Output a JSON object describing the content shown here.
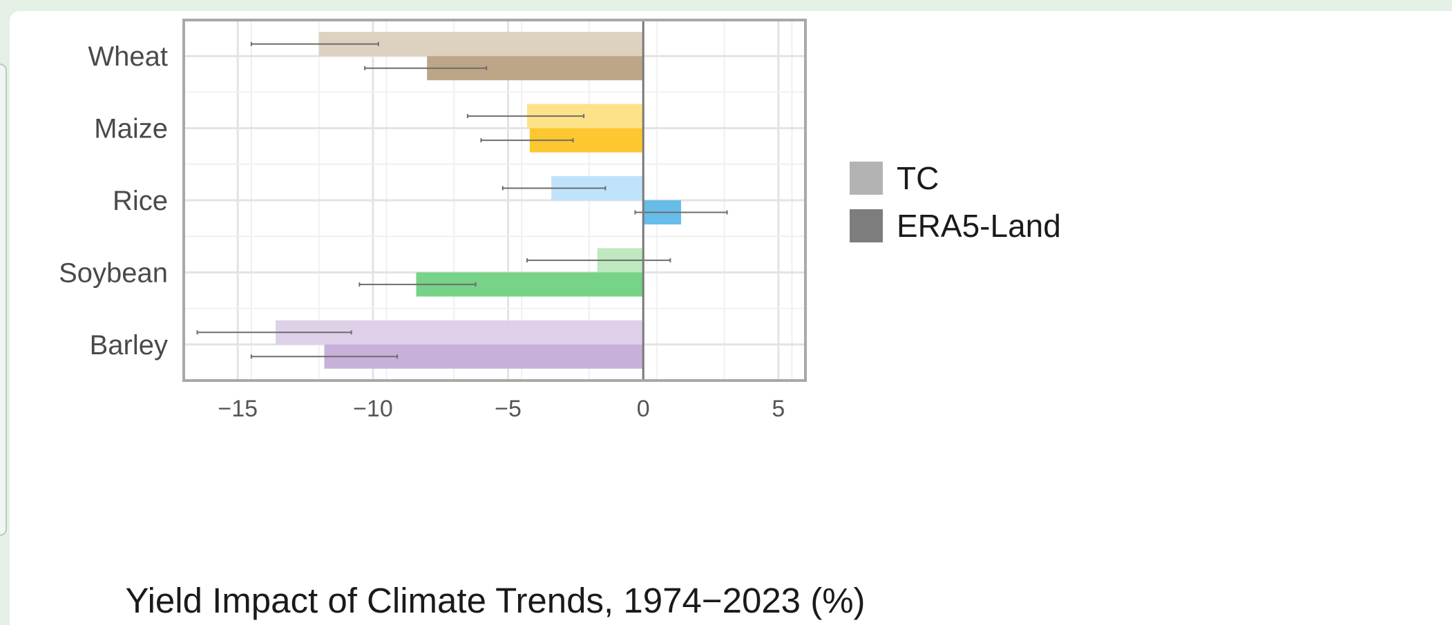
{
  "chart_data": {
    "type": "bar",
    "orientation": "horizontal",
    "categories": [
      "Wheat",
      "Maize",
      "Rice",
      "Soybean",
      "Barley"
    ],
    "series": [
      {
        "name": "TC",
        "values": [
          -12.0,
          -4.3,
          -3.4,
          -1.7,
          -13.6
        ],
        "error_low": [
          -14.5,
          -6.5,
          -5.2,
          -4.3,
          -16.5
        ],
        "error_high": [
          -9.8,
          -2.2,
          -1.4,
          1.0,
          -10.8
        ]
      },
      {
        "name": "ERA5-Land",
        "values": [
          -8.0,
          -4.2,
          1.4,
          -8.4,
          -11.8
        ],
        "error_low": [
          -10.3,
          -6.0,
          -0.3,
          -10.5,
          -14.5
        ],
        "error_high": [
          -5.8,
          -2.6,
          3.1,
          -6.2,
          -9.1
        ]
      }
    ],
    "colors": {
      "Wheat": [
        "#ddd1bf",
        "#bda687"
      ],
      "Maize": [
        "#fde287",
        "#fcc72f"
      ],
      "Rice": [
        "#bfe3fa",
        "#67bde9"
      ],
      "Soybean": [
        "#bde8c0",
        "#77d387"
      ],
      "Barley": [
        "#ddd0e8",
        "#c7b0da"
      ]
    },
    "legend_colors": [
      "#b3b3b3",
      "#7d7d7d"
    ],
    "xlabel": "Yield Impact of Climate Trends, 1974−2023 (%)",
    "xlim": [
      -17,
      6
    ],
    "xticks": [
      -15,
      -10,
      -5,
      0,
      5
    ],
    "xtick_labels": [
      "−15",
      "−10",
      "−5",
      "0",
      "5"
    ],
    "grid": true,
    "legend_position": "right"
  }
}
